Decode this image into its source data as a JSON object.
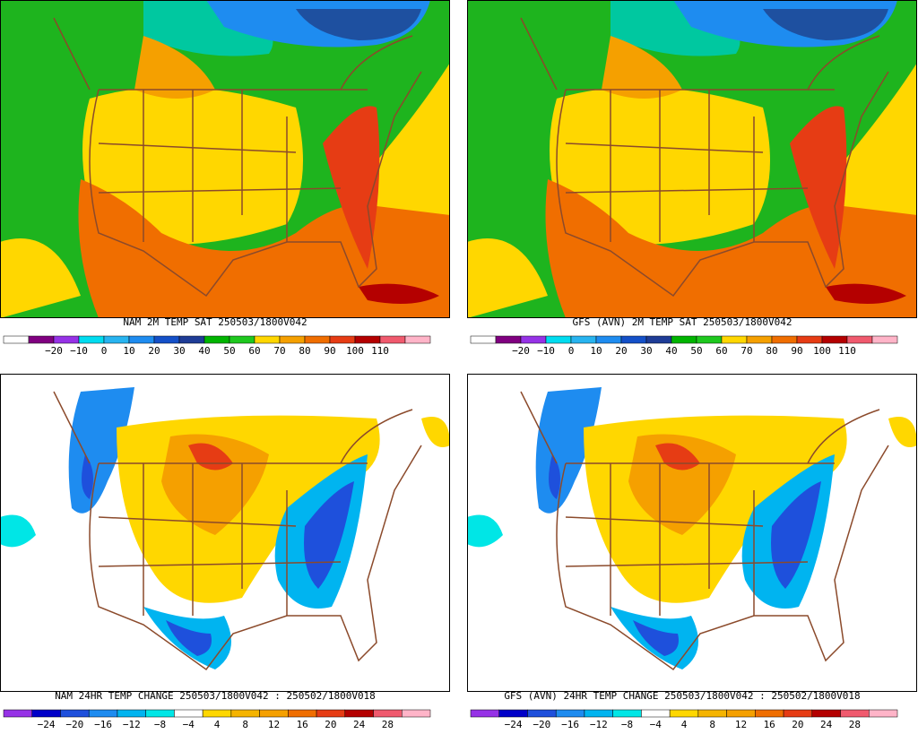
{
  "panels": [
    {
      "title": "NAM 2M TEMP  SAT 250503/1800V042",
      "colorbar": {
        "colors": [
          "#ffffff",
          "#800080",
          "#9632e6",
          "#00dcf0",
          "#28b4f0",
          "#1e8cf0",
          "#1450c8",
          "#1e3c96",
          "#00b400",
          "#1ec81e",
          "#ffd700",
          "#f5a000",
          "#f06e00",
          "#e63c14",
          "#b40000",
          "#f05a6e",
          "#ffb4c8"
        ],
        "labels": [
          "−20",
          "−10",
          "0",
          "10",
          "20",
          "30",
          "40",
          "50",
          "60",
          "70",
          "80",
          "90",
          "100",
          "110"
        ]
      }
    },
    {
      "title": "GFS (AVN) 2M TEMP  SAT 250503/1800V042",
      "colorbar": {
        "colors": [
          "#ffffff",
          "#800080",
          "#9632e6",
          "#00dcf0",
          "#28b4f0",
          "#1e8cf0",
          "#1450c8",
          "#1e3c96",
          "#00b400",
          "#1ec81e",
          "#ffd700",
          "#f5a000",
          "#f06e00",
          "#e63c14",
          "#b40000",
          "#f05a6e",
          "#ffb4c8"
        ],
        "labels": [
          "−20",
          "−10",
          "0",
          "10",
          "20",
          "30",
          "40",
          "50",
          "60",
          "70",
          "80",
          "90",
          "100",
          "110"
        ]
      }
    },
    {
      "title": "NAM 24HR TEMP CHANGE 250503/1800V042 : 250502/1800V018",
      "colorbar": {
        "colors": [
          "#9632e6",
          "#0000c8",
          "#1e50dc",
          "#1e8cf0",
          "#00b4f0",
          "#00e6e6",
          "#ffffff",
          "#ffd700",
          "#f5b400",
          "#f5a000",
          "#f06e00",
          "#e63c14",
          "#b40000",
          "#f05a6e",
          "#ffb4c8"
        ],
        "labels": [
          "−24",
          "−20",
          "−16",
          "−12",
          "−8",
          "−4",
          "4",
          "8",
          "12",
          "16",
          "20",
          "24",
          "28"
        ]
      }
    },
    {
      "title": "GFS (AVN) 24HR TEMP CHANGE 250503/1800V042 : 250502/1800V018",
      "colorbar": {
        "colors": [
          "#9632e6",
          "#0000c8",
          "#1e50dc",
          "#1e8cf0",
          "#00b4f0",
          "#00e6e6",
          "#ffffff",
          "#ffd700",
          "#f5b400",
          "#f5a000",
          "#f06e00",
          "#e63c14",
          "#b40000",
          "#f05a6e",
          "#ffb4c8"
        ],
        "labels": [
          "−24",
          "−20",
          "−16",
          "−12",
          "−8",
          "−4",
          "4",
          "8",
          "12",
          "16",
          "20",
          "24",
          "28"
        ]
      }
    }
  ]
}
